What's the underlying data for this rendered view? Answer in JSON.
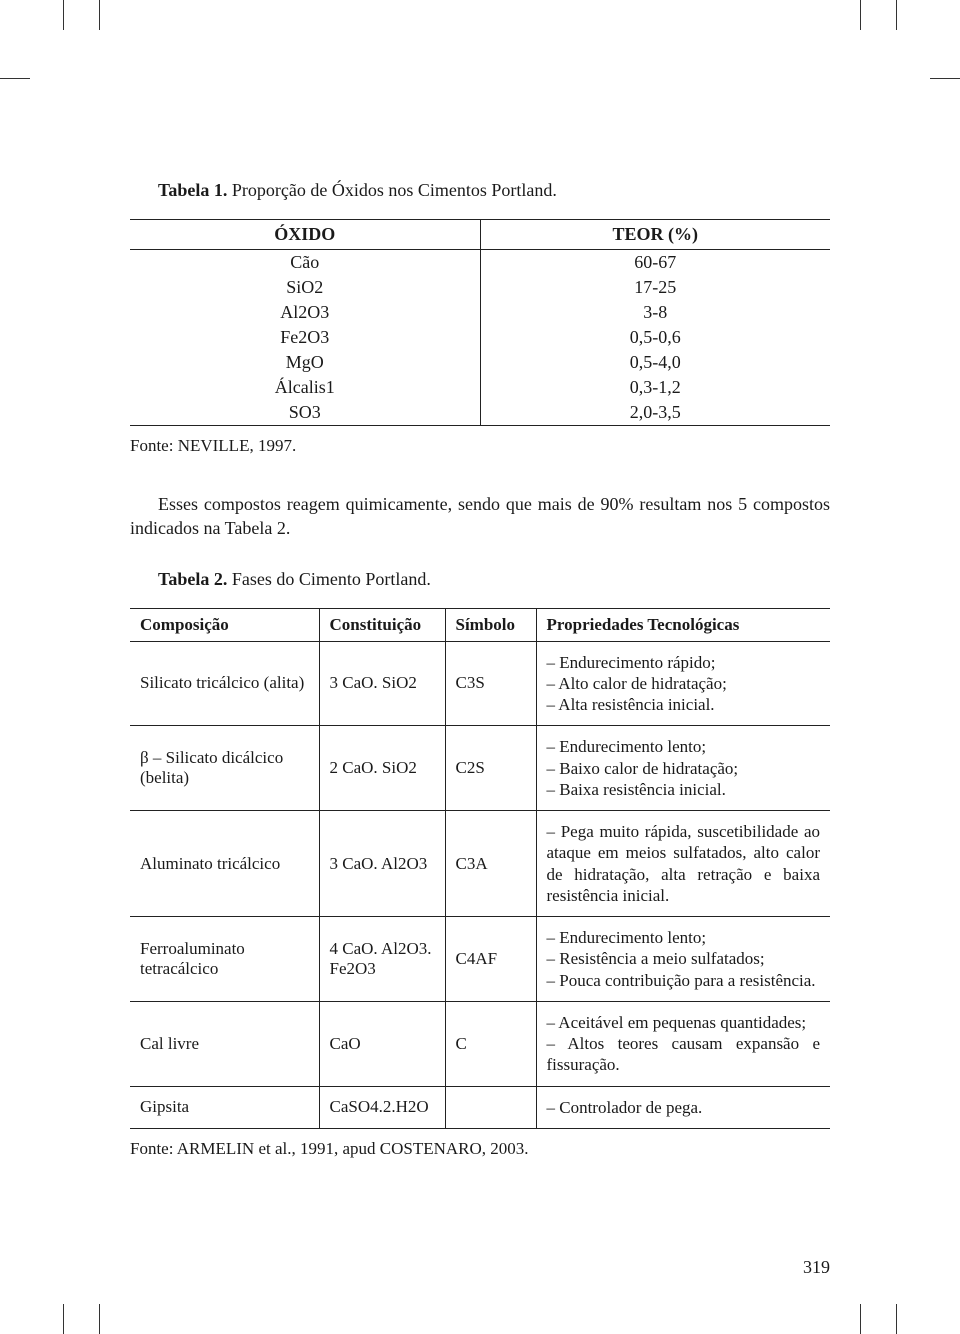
{
  "cropmark_color": "#333333",
  "heading1_bold": "Tabela 1.",
  "heading1_rest": " Proporção de Óxidos nos Cimentos Portland.",
  "table1": {
    "headers": [
      "ÓXIDO",
      "TEOR (%)"
    ],
    "rows": [
      [
        "Cão",
        "60-67"
      ],
      [
        "SiO2",
        "17-25"
      ],
      [
        "Al2O3",
        "3-8"
      ],
      [
        "Fe2O3",
        "0,5-0,6"
      ],
      [
        "MgO",
        "0,5-4,0"
      ],
      [
        "Álcalis1",
        "0,3-1,2"
      ],
      [
        "SO3",
        "2,0-3,5"
      ]
    ]
  },
  "fonte1": "Fonte: NEVILLE, 1997.",
  "paragraph": "Esses compostos reagem quimicamente, sendo que mais de 90% resultam nos 5 compostos indicados na Tabela 2.",
  "heading2_bold": "Tabela 2.",
  "heading2_rest": " Fases do Cimento Portland.",
  "table2": {
    "headers": [
      "Composição",
      "Constituição",
      "Símbolo",
      "Propriedades Tecnológicas"
    ],
    "rows": [
      {
        "composicao": "Silicato tricálcico (alita)",
        "constituicao": "3 CaO. SiO2",
        "simbolo": "C3S",
        "propriedades": "– Endurecimento rápido;\n– Alto calor de hidratação;\n– Alta resistência inicial."
      },
      {
        "composicao": "β – Silicato dicálcico (belita)",
        "constituicao": "2 CaO. SiO2",
        "simbolo": "C2S",
        "propriedades": "– Endurecimento lento;\n– Baixo calor de hidratação;\n– Baixa resistência inicial."
      },
      {
        "composicao": "Aluminato tricálcico",
        "constituicao": "3 CaO. Al2O3",
        "simbolo": "C3A",
        "propriedades": "– Pega muito rápida, suscetibilidade ao ataque em meios sulfatados, alto calor de hidratação, alta retração e baixa resistência inicial."
      },
      {
        "composicao": "Ferroaluminato tetracálcico",
        "constituicao": "4 CaO. Al2O3. Fe2O3",
        "simbolo": "C4AF",
        "propriedades": "– Endurecimento lento;\n– Resistência a meio sulfatados;\n– Pouca contribuição para a resistência."
      },
      {
        "composicao": "Cal livre",
        "constituicao": "CaO",
        "simbolo": "C",
        "propriedades": "– Aceitável em pequenas quantidades;\n– Altos teores causam expansão e fissuração."
      },
      {
        "composicao": "Gipsita",
        "constituicao": "CaSO4.2.H2O",
        "simbolo": "",
        "propriedades": "– Controlador de pega."
      }
    ]
  },
  "fonte2": "Fonte: ARMELIN et al., 1991, apud COSTENARO, 2003.",
  "page_number": "319"
}
